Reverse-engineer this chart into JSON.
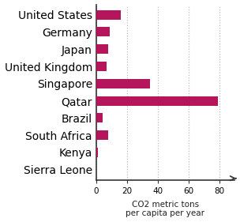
{
  "countries": [
    "United States",
    "Germany",
    "Japan",
    "United Kingdom",
    "Singapore",
    "Qatar",
    "Brazil",
    "South Africa",
    "Kenya",
    "Sierra Leone"
  ],
  "values": [
    16,
    9,
    8,
    7,
    35,
    79,
    4,
    8,
    1,
    0.3
  ],
  "bar_color": "#b5165b",
  "bar_height": 0.55,
  "xlim": [
    0,
    90
  ],
  "xticks": [
    0,
    20,
    40,
    60,
    80
  ],
  "xlabel_line1": "CO2 metric tons",
  "xlabel_line2": "per capita per year",
  "grid_color": "#bbbbbb",
  "grid_style": ":",
  "background_color": "#ffffff",
  "text_color": "#222222",
  "label_fontsize": 7.5,
  "tick_fontsize": 7.5,
  "xlabel_fontsize": 7.5
}
